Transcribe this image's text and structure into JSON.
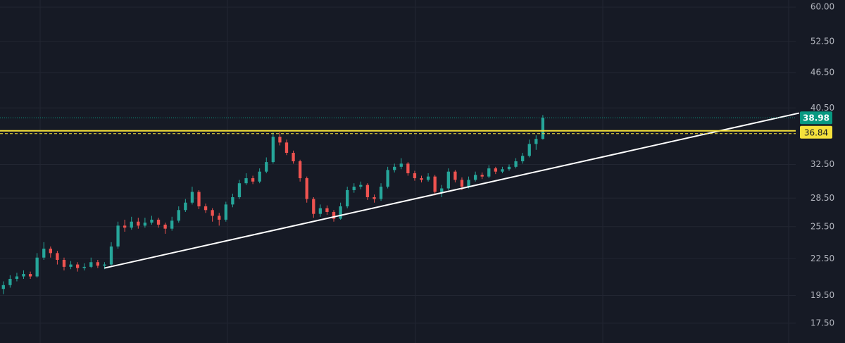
{
  "chart_data": {
    "type": "candlestick",
    "log_scale": true,
    "grid": true,
    "up_color": "#26a69a",
    "down_color": "#ef5350",
    "xlim": [
      -0.5,
      117.5
    ],
    "ylim": [
      16.2,
      61.7
    ],
    "yticks": [
      {
        "value": 60,
        "label": "60.00"
      },
      {
        "value": 52.5,
        "label": "52.50"
      },
      {
        "value": 46.5,
        "label": "46.50"
      },
      {
        "value": 40.5,
        "label": "40.50"
      },
      {
        "value": 32.5,
        "label": "32.50"
      },
      {
        "value": 28.5,
        "label": "28.50"
      },
      {
        "value": 25.5,
        "label": "25.50"
      },
      {
        "value": 22.5,
        "label": "22.50"
      },
      {
        "value": 19.5,
        "label": "19.50"
      },
      {
        "value": 17.5,
        "label": "17.50"
      }
    ],
    "open": [
      20.0,
      20.3,
      20.8,
      21.0,
      21.2,
      21.0,
      22.6,
      23.4,
      23.0,
      22.4,
      21.8,
      22.0,
      21.7,
      21.8,
      22.2,
      21.9,
      22.0,
      23.6,
      25.6,
      25.4,
      26.0,
      25.6,
      25.9,
      26.2,
      25.7,
      25.3,
      26.1,
      27.2,
      28.0,
      29.2,
      27.6,
      27.2,
      26.6,
      26.2,
      27.8,
      28.6,
      30.2,
      30.8,
      30.4,
      31.6,
      32.8,
      36.2,
      35.4,
      34.0,
      32.9,
      30.8,
      28.4,
      26.8,
      27.4,
      27.0,
      26.3,
      27.6,
      29.4,
      29.8,
      30.0,
      28.6,
      28.4,
      29.8,
      31.8,
      32.2,
      32.6,
      31.4,
      30.8,
      30.6,
      31.0,
      29.2,
      29.6,
      31.6,
      30.6,
      29.8,
      30.6,
      31.2,
      31.0,
      32.0,
      31.6,
      31.9,
      32.2,
      32.9,
      33.6,
      35.2,
      35.9
    ],
    "high": [
      20.6,
      21.1,
      21.3,
      21.5,
      21.4,
      23.0,
      24.0,
      23.6,
      23.2,
      22.6,
      22.3,
      22.2,
      22.1,
      22.6,
      22.4,
      22.2,
      24.0,
      26.0,
      26.2,
      26.5,
      26.4,
      26.4,
      26.6,
      26.4,
      25.9,
      26.5,
      27.6,
      28.4,
      29.8,
      29.4,
      27.9,
      27.4,
      26.9,
      28.1,
      29.0,
      30.6,
      31.4,
      31.1,
      32.0,
      33.4,
      36.8,
      36.84,
      35.8,
      34.3,
      33.1,
      31.0,
      28.6,
      27.8,
      27.7,
      27.2,
      28.0,
      29.8,
      30.2,
      30.4,
      30.2,
      28.9,
      30.2,
      32.2,
      32.6,
      33.3,
      32.8,
      31.7,
      31.1,
      31.4,
      31.2,
      30.0,
      32.0,
      31.8,
      30.9,
      31.0,
      31.6,
      31.5,
      32.4,
      32.2,
      32.2,
      32.5,
      33.3,
      34.0,
      35.8,
      36.4,
      39.4
    ],
    "low": [
      19.6,
      20.1,
      20.6,
      20.8,
      20.8,
      20.9,
      22.4,
      22.6,
      22.0,
      21.5,
      21.6,
      21.4,
      21.5,
      21.7,
      21.7,
      21.6,
      21.9,
      23.4,
      25.0,
      25.2,
      25.3,
      25.4,
      25.7,
      25.4,
      24.8,
      25.1,
      25.9,
      27.0,
      27.8,
      27.3,
      26.9,
      26.0,
      25.6,
      26.0,
      27.5,
      28.4,
      30.0,
      30.1,
      30.2,
      31.4,
      32.6,
      35.0,
      33.7,
      32.6,
      30.4,
      28.0,
      26.4,
      26.5,
      26.7,
      26.0,
      26.2,
      27.4,
      29.1,
      29.5,
      28.3,
      28.0,
      28.2,
      29.6,
      31.5,
      31.9,
      31.1,
      30.5,
      30.3,
      30.4,
      28.8,
      28.6,
      29.4,
      30.3,
      29.4,
      29.6,
      30.4,
      30.7,
      30.8,
      31.3,
      31.4,
      31.7,
      32.0,
      32.6,
      33.4,
      34.4,
      35.8
    ],
    "close": [
      20.3,
      20.8,
      21.0,
      21.2,
      21.0,
      22.6,
      23.4,
      23.0,
      22.4,
      21.8,
      22.0,
      21.7,
      21.8,
      22.2,
      21.9,
      22.0,
      23.6,
      25.6,
      25.4,
      26.0,
      25.6,
      25.9,
      26.2,
      25.7,
      25.3,
      26.1,
      27.2,
      28.0,
      29.2,
      27.6,
      27.2,
      26.6,
      26.2,
      27.8,
      28.6,
      30.2,
      30.8,
      30.4,
      31.6,
      32.8,
      36.2,
      35.4,
      34.0,
      32.9,
      30.8,
      28.4,
      26.8,
      27.4,
      27.0,
      26.3,
      27.6,
      29.4,
      29.8,
      30.0,
      28.6,
      28.4,
      29.8,
      31.8,
      32.2,
      32.6,
      31.4,
      30.8,
      30.6,
      31.0,
      29.2,
      29.6,
      31.6,
      30.6,
      29.8,
      30.6,
      31.2,
      31.0,
      32.0,
      31.6,
      31.9,
      32.2,
      32.9,
      33.6,
      35.2,
      35.9,
      38.98
    ],
    "level": {
      "value": 36.84,
      "color": "#f5e13c"
    },
    "last_price": {
      "value": 38.98,
      "color": "#089981"
    },
    "trendline": {
      "x": [
        15,
        118
      ],
      "values": [
        21.7,
        39.7
      ],
      "color": "#ffffff"
    }
  }
}
